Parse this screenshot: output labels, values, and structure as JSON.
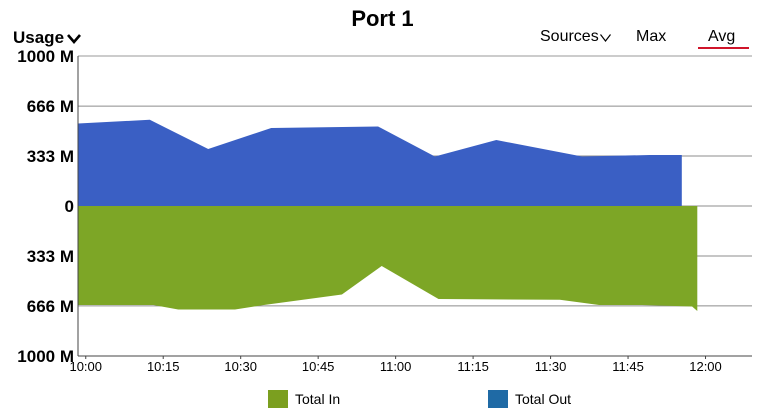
{
  "header": {
    "title": "Port 1",
    "metric_label": "Usage",
    "metric_icon": "chevron-down-icon",
    "sources_label": "Sources",
    "sources_icon": "chevron-down-icon",
    "max_label": "Max",
    "avg_label": "Avg",
    "selected_aggregate": "Avg",
    "selected_color": "#d0142a"
  },
  "chart_data": {
    "type": "area",
    "title": "Port 1",
    "ylabel": "Usage",
    "xlabel": "",
    "y_tick_labels": [
      "1000 M",
      "666 M",
      "333 M",
      "0",
      "333 M",
      "666 M",
      "1000 M"
    ],
    "y_ticks": [
      1000,
      666,
      333,
      0,
      -333,
      -666,
      -1000
    ],
    "x_tick_labels": [
      "10:00",
      "10:15",
      "10:30",
      "10:45",
      "11:00",
      "11:15",
      "11:30",
      "11:45",
      "12:00"
    ],
    "x_ticks": [
      0,
      15,
      30,
      45,
      60,
      75,
      90,
      105,
      120
    ],
    "ylim": [
      -1000,
      1000
    ],
    "xlim": [
      -1.5,
      129
    ],
    "grid": "horizontal",
    "legend_position": "bottom",
    "series": [
      {
        "name": "Total Out",
        "color": "#3a5fc4",
        "legend_color": "#1f6aa5",
        "x": [
          -1.5,
          12.4,
          23.7,
          35.9,
          56.6,
          67.6,
          79.5,
          96.1,
          109.2,
          115.4
        ],
        "values": [
          550,
          575,
          380,
          520,
          530,
          330,
          440,
          330,
          340,
          340
        ]
      },
      {
        "name": "Total In",
        "color": "#7da626",
        "legend_color": "#7b9f1f",
        "x": [
          -1.5,
          13.1,
          17.9,
          28.9,
          34.5,
          49.6,
          57.3,
          68.3,
          91.8,
          99.4,
          107.7,
          117.4,
          118.4
        ],
        "values": [
          -660,
          -660,
          -690,
          -690,
          -660,
          -590,
          -400,
          -620,
          -625,
          -660,
          -660,
          -670,
          -700
        ]
      }
    ]
  }
}
